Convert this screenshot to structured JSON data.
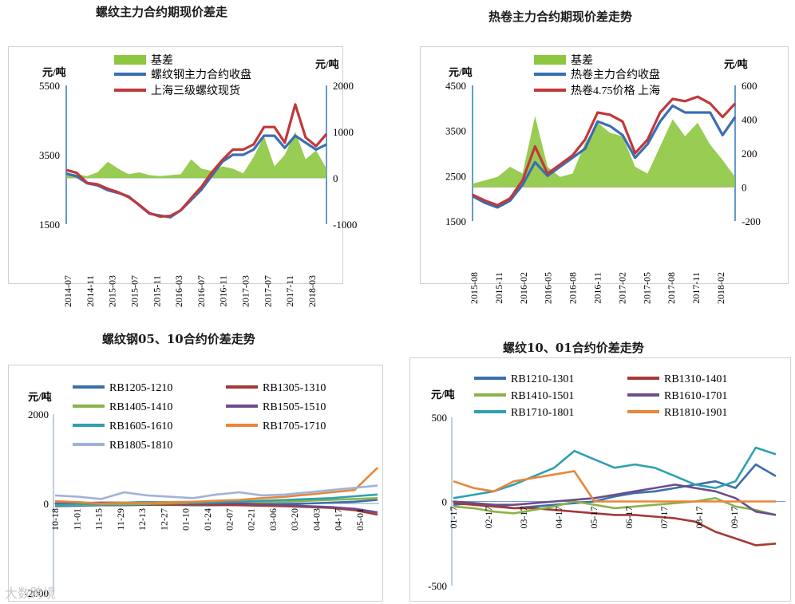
{
  "colors": {
    "basis": "#8dc63f",
    "blue": "#3a6eb5",
    "red": "#c0393b",
    "axis": "#2e7ab8"
  },
  "chart_data": [
    {
      "id": "rebar-basis",
      "type": "line",
      "title": "螺纹主力合约期现价差走",
      "left_unit": "元/吨",
      "right_unit": "元/吨",
      "left_ticks": [
        "5500",
        "3500",
        "1500"
      ],
      "right_ticks": [
        "2000",
        "1000",
        "0",
        "-1000"
      ],
      "ylim_left": [
        1500,
        5500
      ],
      "ylim_right": [
        -1000,
        2000
      ],
      "x_ticks": [
        "2014-07",
        "2014-11",
        "2015-03",
        "2015-07",
        "2015-11",
        "2016-03",
        "2016-07",
        "2016-11",
        "2017-03",
        "2017-07",
        "2017-11",
        "2018-03"
      ],
      "series_left": [
        {
          "name": "螺纹钢主力合约收盘",
          "color": "#3a6eb5",
          "values": [
            2960,
            2880,
            2680,
            2620,
            2480,
            2400,
            2300,
            2050,
            1800,
            1750,
            1700,
            1900,
            2200,
            2500,
            2900,
            3300,
            3500,
            3500,
            3650,
            4050,
            4050,
            3700,
            4050,
            3850,
            3650,
            3800
          ]
        },
        {
          "name": "上海三级螺纹现货",
          "color": "#c0393b",
          "values": [
            3060,
            2980,
            2690,
            2650,
            2520,
            2420,
            2280,
            2060,
            1820,
            1720,
            1740,
            1900,
            2250,
            2580,
            3000,
            3350,
            3650,
            3650,
            3800,
            4300,
            4300,
            3850,
            4950,
            4000,
            3750,
            4100
          ]
        }
      ],
      "series_right": [
        {
          "name": "基差",
          "color": "#8dc63f",
          "values": [
            100,
            80,
            40,
            120,
            350,
            200,
            80,
            120,
            60,
            40,
            60,
            80,
            400,
            200,
            150,
            250,
            200,
            100,
            450,
            900,
            250,
            500,
            1000,
            400,
            600,
            200
          ]
        }
      ]
    },
    {
      "id": "hrc-basis",
      "type": "line",
      "title": "热卷主力合约期现价差走势",
      "left_unit": "元/吨",
      "right_unit": "元/吨",
      "left_ticks": [
        "4500",
        "3500",
        "2500",
        "1500"
      ],
      "right_ticks": [
        "600",
        "400",
        "200",
        "0",
        "-200"
      ],
      "ylim_left": [
        1500,
        4500
      ],
      "ylim_right": [
        -200,
        600
      ],
      "x_ticks": [
        "2015-08",
        "2015-11",
        "2016-02",
        "2016-05",
        "2016-08",
        "2016-11",
        "2017-02",
        "2017-05",
        "2017-08",
        "2017-11",
        "2018-02"
      ],
      "series_left": [
        {
          "name": "热卷主力合约收盘",
          "color": "#3a6eb5",
          "values": [
            2050,
            1900,
            1800,
            1950,
            2300,
            2800,
            2500,
            2700,
            2900,
            3100,
            3700,
            3600,
            3400,
            2900,
            3200,
            3700,
            4050,
            3900,
            3900,
            3900,
            3400,
            3800
          ]
        },
        {
          "name": "热卷4.75价格 上海",
          "color": "#c0393b",
          "values": [
            2080,
            1950,
            1850,
            2000,
            2400,
            3150,
            2550,
            2750,
            2950,
            3300,
            3900,
            3850,
            3700,
            3000,
            3300,
            3900,
            4200,
            4150,
            4250,
            4100,
            3800,
            4100
          ]
        }
      ],
      "series_right": [
        {
          "name": "基差",
          "color": "#8dc63f",
          "values": [
            20,
            40,
            60,
            120,
            80,
            420,
            120,
            60,
            80,
            260,
            380,
            320,
            300,
            120,
            80,
            240,
            400,
            300,
            380,
            250,
            160,
            60
          ]
        }
      ]
    },
    {
      "id": "rb-05-10",
      "type": "line",
      "title": "螺纹钢05、10合约价差走势",
      "unit": "元/吨",
      "y_ticks": [
        "2000",
        "0",
        "-2000"
      ],
      "ylim": [
        -2000,
        2000
      ],
      "x_ticks": [
        "10-18",
        "11-01",
        "11-15",
        "11-29",
        "12-13",
        "12-27",
        "01-10",
        "01-24",
        "02-07",
        "02-21",
        "03-06",
        "03-20",
        "04-03",
        "04-17",
        "05-01"
      ],
      "series": [
        {
          "name": "RB1205-1210",
          "color": "#3d6ea8",
          "values": [
            -60,
            -50,
            -40,
            -40,
            -30,
            -30,
            -40,
            -40,
            -30,
            -20,
            -10,
            0,
            20,
            40,
            80
          ]
        },
        {
          "name": "RB1305-1310",
          "color": "#a33a36",
          "values": [
            -20,
            -10,
            0,
            -10,
            -20,
            -30,
            -20,
            -30,
            -40,
            -50,
            -60,
            -80,
            -100,
            -150,
            -250
          ]
        },
        {
          "name": "RB1405-1410",
          "color": "#8bb34a",
          "values": [
            -40,
            -30,
            -20,
            -20,
            -10,
            0,
            10,
            10,
            20,
            30,
            40,
            60,
            80,
            100,
            120
          ]
        },
        {
          "name": "RB1505-1510",
          "color": "#6b4c8c",
          "values": [
            0,
            10,
            20,
            20,
            30,
            30,
            20,
            10,
            0,
            -20,
            -40,
            -60,
            -80,
            -120,
            -200
          ]
        },
        {
          "name": "RB1605-1610",
          "color": "#2fa0b0",
          "values": [
            -30,
            -20,
            0,
            20,
            30,
            30,
            20,
            30,
            40,
            60,
            80,
            100,
            120,
            160,
            200
          ]
        },
        {
          "name": "RB1705-1710",
          "color": "#e8863a",
          "values": [
            50,
            30,
            0,
            20,
            10,
            30,
            40,
            60,
            80,
            120,
            150,
            200,
            250,
            300,
            800
          ]
        },
        {
          "name": "RB1805-1810",
          "color": "#9fb3d9",
          "values": [
            180,
            150,
            100,
            250,
            180,
            150,
            120,
            200,
            250,
            180,
            200,
            250,
            300,
            350,
            400
          ]
        }
      ]
    },
    {
      "id": "rb-10-01",
      "type": "line",
      "title": "螺纹10、01合约价差走势",
      "unit": "元/吨",
      "y_ticks": [
        "500",
        "0",
        "-500"
      ],
      "ylim": [
        -500,
        500
      ],
      "x_ticks": [
        "01-17",
        "02-17",
        "03-17",
        "04-17",
        "05-17",
        "06-17",
        "07-17",
        "08-17",
        "09-17"
      ],
      "series": [
        {
          "name": "RB1210-1301",
          "color": "#3d6ea8",
          "values": [
            -20,
            -10,
            -20,
            -40,
            -30,
            -20,
            -10,
            0,
            30,
            50,
            60,
            80,
            100,
            120,
            80,
            220,
            150
          ]
        },
        {
          "name": "RB1310-1401",
          "color": "#a33a36",
          "values": [
            -10,
            -20,
            -30,
            -40,
            -40,
            -50,
            -60,
            -70,
            -80,
            -80,
            -90,
            -100,
            -120,
            -180,
            -220,
            -260,
            -250
          ]
        },
        {
          "name": "RB1410-1501",
          "color": "#8bb34a",
          "values": [
            -30,
            -40,
            -60,
            -70,
            -50,
            -30,
            0,
            -20,
            -40,
            -30,
            -20,
            -10,
            0,
            20,
            -30,
            -50,
            -80
          ]
        },
        {
          "name": "RB1610-1701",
          "color": "#6b4c8c",
          "values": [
            0,
            -10,
            -20,
            -20,
            -10,
            0,
            10,
            20,
            40,
            60,
            80,
            100,
            80,
            60,
            20,
            -60,
            -80
          ]
        },
        {
          "name": "RB1710-1801",
          "color": "#2fa0b0",
          "values": [
            20,
            40,
            60,
            100,
            150,
            200,
            300,
            250,
            200,
            220,
            200,
            150,
            100,
            80,
            120,
            320,
            280
          ]
        },
        {
          "name": "RB1810-1901",
          "color": "#e8863a",
          "values": [
            120,
            80,
            60,
            120,
            140,
            160,
            180,
            0,
            0,
            0,
            0,
            0,
            0,
            0,
            0,
            0,
            0
          ]
        }
      ]
    }
  ],
  "legend_basis": "基差",
  "watermark": "大数跨境"
}
